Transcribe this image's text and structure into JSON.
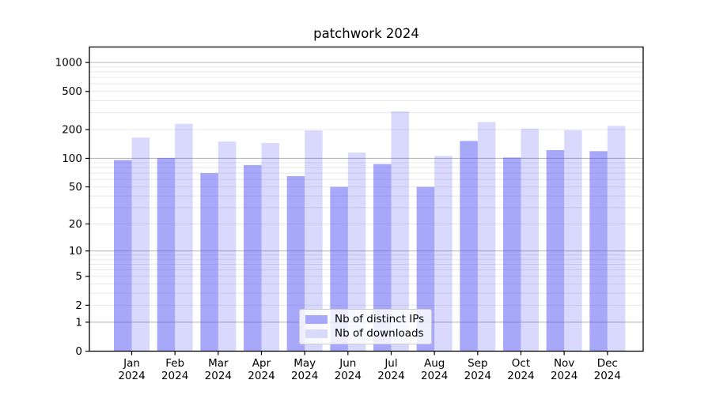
{
  "chart_data": {
    "type": "bar",
    "title": "patchwork 2024",
    "categories": [
      "Jan",
      "Feb",
      "Mar",
      "Apr",
      "May",
      "Jun",
      "Jul",
      "Aug",
      "Sep",
      "Oct",
      "Nov",
      "Dec"
    ],
    "category_year": "2024",
    "series": [
      {
        "name": "Nb of distinct IPs",
        "base_color": "#5252f5",
        "alpha": 0.5,
        "swatch_color": "#a8a8fa",
        "values": [
          96,
          101,
          70,
          85,
          65,
          50,
          87,
          50,
          152,
          102,
          122,
          119
        ]
      },
      {
        "name": "Nb of downloads",
        "base_color": "#5252f5",
        "alpha": 0.22,
        "swatch_color": "#d9d9fc",
        "values": [
          165,
          230,
          150,
          145,
          196,
          115,
          310,
          106,
          240,
          205,
          197,
          218
        ]
      }
    ],
    "xlabel": "",
    "ylabel": "",
    "yscale": "log1p",
    "yticks": [
      0,
      1,
      2,
      5,
      10,
      20,
      50,
      100,
      200,
      500,
      1000
    ],
    "ylim": [
      0,
      1450
    ],
    "grid": true,
    "major_grid_values": [
      1,
      10,
      100,
      1000
    ],
    "major_grid_color": "#b9b9b9",
    "minor_grid_color": "#e8e8e8",
    "legend_position": "lower center"
  }
}
